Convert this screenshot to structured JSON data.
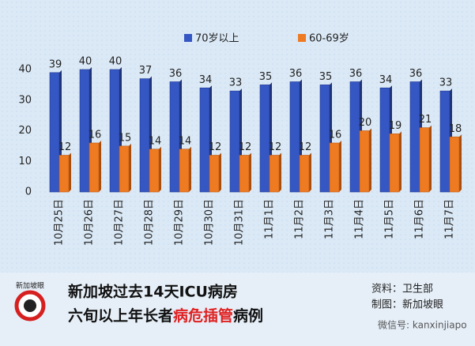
{
  "chart_data": {
    "type": "bar",
    "categories": [
      "10月25日",
      "10月26日",
      "10月27日",
      "10月28日",
      "10月29日",
      "10月30日",
      "10月31日",
      "11月1日",
      "11月2日",
      "11月3日",
      "11月4日",
      "11月5日",
      "11月6日",
      "11月7日"
    ],
    "series": [
      {
        "name": "70岁以上",
        "color": "#3557c4",
        "values": [
          39,
          40,
          40,
          37,
          36,
          34,
          33,
          35,
          36,
          35,
          36,
          34,
          36,
          33
        ]
      },
      {
        "name": "60-69岁",
        "color": "#ee7a22",
        "values": [
          12,
          16,
          15,
          14,
          14,
          12,
          12,
          12,
          12,
          16,
          20,
          19,
          21,
          18
        ]
      }
    ],
    "ylim": [
      0,
      40
    ],
    "yticks": [
      0,
      10,
      20,
      30,
      40
    ],
    "title": "新加坡过去14天ICU病房",
    "subtitle_parts": [
      "六旬以上年长者",
      "病危插管",
      "病例"
    ],
    "notes": [
      "资料：卫生部",
      "制图：新加坡眼"
    ],
    "logo_text": "新加坡眼",
    "watermark": "微信号: kanxinjiapo"
  }
}
